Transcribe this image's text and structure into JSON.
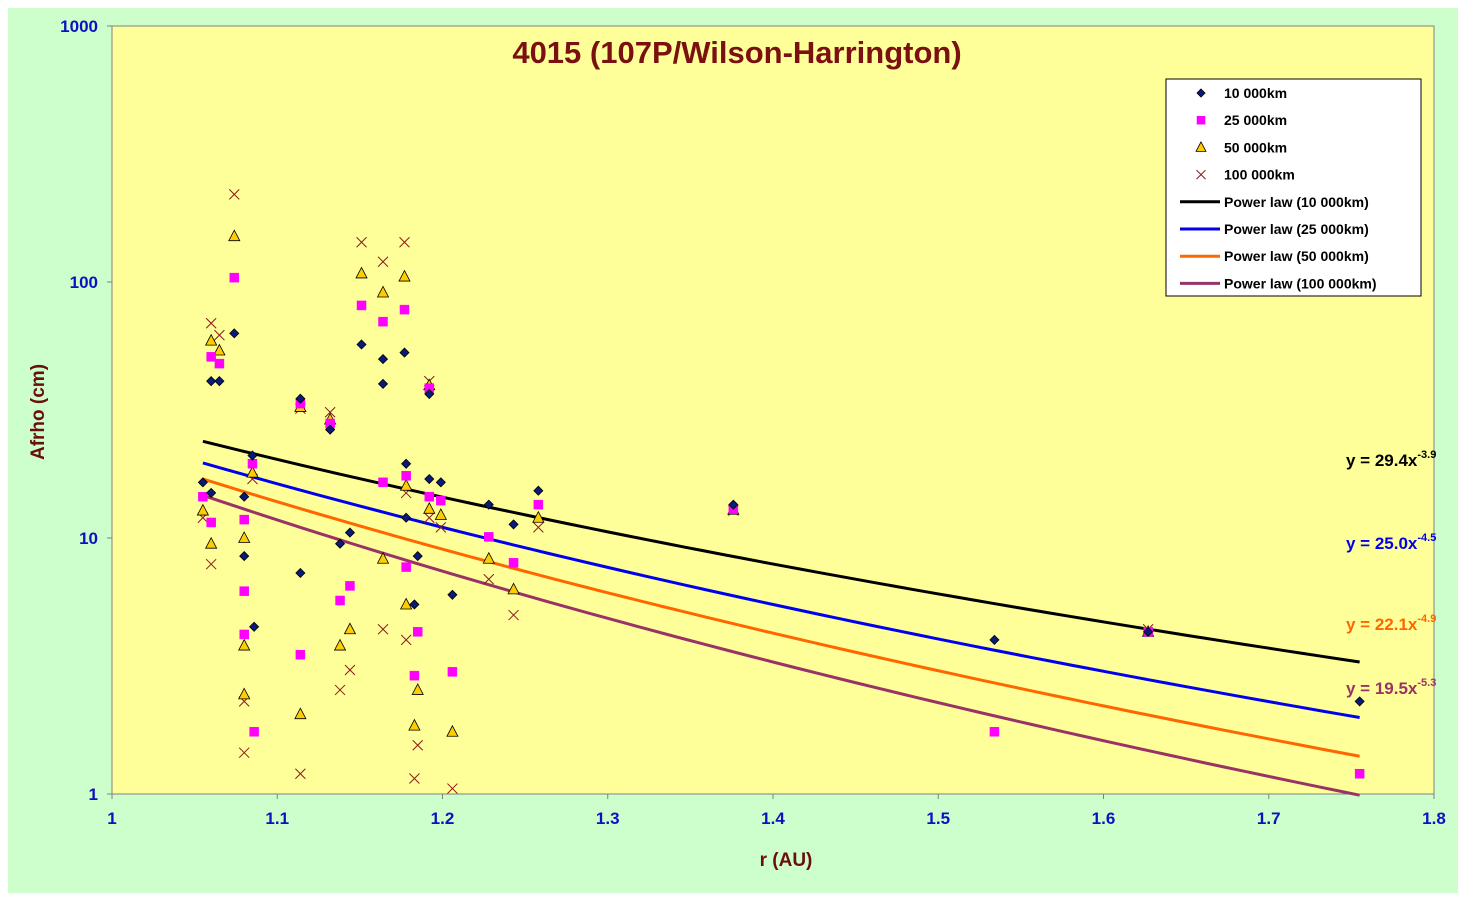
{
  "colors": {
    "outer_background": "#ccffcc",
    "plot_background": "#ffff99",
    "title": "#7a1010",
    "axis_title": "#6a0f0f",
    "tick_labels": "#1010c0"
  },
  "chart_data": {
    "type": "scatter",
    "title": "4015 (107P/Wilson-Harrington)",
    "xlabel": "r (AU)",
    "ylabel": "Afrho (cm)",
    "xlim": [
      1.0,
      1.8
    ],
    "ylim": [
      1,
      1000
    ],
    "yscale": "log",
    "grid": false,
    "legend_position": "top-right",
    "x_ticks": [
      "1",
      "1.1",
      "1.2",
      "1.3",
      "1.4",
      "1.5",
      "1.6",
      "1.7",
      "1.8"
    ],
    "y_ticks": [
      "1",
      "10",
      "100",
      "1000"
    ],
    "series": [
      {
        "name": "10 000km",
        "marker": "diamond",
        "color": "#0a1a7a",
        "stroke": "#000000",
        "points": [
          [
            1.055,
            16.5
          ],
          [
            1.06,
            41
          ],
          [
            1.06,
            15
          ],
          [
            1.065,
            41
          ],
          [
            1.074,
            63
          ],
          [
            1.08,
            14.5
          ],
          [
            1.08,
            8.5
          ],
          [
            1.085,
            21
          ],
          [
            1.086,
            4.5
          ],
          [
            1.114,
            35
          ],
          [
            1.114,
            7.3
          ],
          [
            1.132,
            26.5
          ],
          [
            1.138,
            9.5
          ],
          [
            1.144,
            10.5
          ],
          [
            1.151,
            57
          ],
          [
            1.164,
            50
          ],
          [
            1.164,
            40
          ],
          [
            1.177,
            53
          ],
          [
            1.178,
            19.5
          ],
          [
            1.178,
            12
          ],
          [
            1.183,
            5.5
          ],
          [
            1.185,
            8.5
          ],
          [
            1.192,
            36.5
          ],
          [
            1.192,
            17
          ],
          [
            1.199,
            16.5
          ],
          [
            1.206,
            6.0
          ],
          [
            1.228,
            13.5
          ],
          [
            1.243,
            11.3
          ],
          [
            1.258,
            15.3
          ],
          [
            1.376,
            13.5
          ],
          [
            1.534,
            4.0
          ],
          [
            1.627,
            4.3
          ],
          [
            1.755,
            2.3
          ]
        ]
      },
      {
        "name": "25 000km",
        "marker": "square",
        "color": "#ff00ff",
        "stroke": "#ff00ff",
        "points": [
          [
            1.055,
            14.5
          ],
          [
            1.06,
            51
          ],
          [
            1.06,
            11.5
          ],
          [
            1.065,
            48
          ],
          [
            1.074,
            104
          ],
          [
            1.08,
            11.8
          ],
          [
            1.08,
            6.2
          ],
          [
            1.08,
            4.2
          ],
          [
            1.085,
            19.5
          ],
          [
            1.086,
            1.75
          ],
          [
            1.114,
            33.5
          ],
          [
            1.114,
            3.5
          ],
          [
            1.132,
            28
          ],
          [
            1.138,
            5.7
          ],
          [
            1.144,
            6.5
          ],
          [
            1.151,
            81
          ],
          [
            1.164,
            70
          ],
          [
            1.164,
            16.5
          ],
          [
            1.177,
            78
          ],
          [
            1.178,
            17.5
          ],
          [
            1.178,
            7.7
          ],
          [
            1.183,
            2.9
          ],
          [
            1.185,
            4.3
          ],
          [
            1.192,
            38.5
          ],
          [
            1.192,
            14.5
          ],
          [
            1.199,
            14
          ],
          [
            1.206,
            3.0
          ],
          [
            1.228,
            10.1
          ],
          [
            1.243,
            8.0
          ],
          [
            1.258,
            13.5
          ],
          [
            1.376,
            13.0
          ],
          [
            1.534,
            1.75
          ],
          [
            1.627,
            4.3
          ],
          [
            1.755,
            1.2
          ]
        ]
      },
      {
        "name": "50 000km",
        "marker": "triangle",
        "color": "#ffcc00",
        "stroke": "#000000",
        "points": [
          [
            1.055,
            12.8
          ],
          [
            1.06,
            59
          ],
          [
            1.06,
            9.5
          ],
          [
            1.065,
            54
          ],
          [
            1.074,
            151
          ],
          [
            1.08,
            10
          ],
          [
            1.08,
            3.8
          ],
          [
            1.08,
            2.45
          ],
          [
            1.085,
            18
          ],
          [
            1.114,
            32.5
          ],
          [
            1.114,
            2.05
          ],
          [
            1.132,
            29
          ],
          [
            1.138,
            3.8
          ],
          [
            1.144,
            4.4
          ],
          [
            1.151,
            108
          ],
          [
            1.164,
            91
          ],
          [
            1.164,
            8.3
          ],
          [
            1.177,
            105
          ],
          [
            1.178,
            16
          ],
          [
            1.178,
            5.5
          ],
          [
            1.183,
            1.85
          ],
          [
            1.185,
            2.55
          ],
          [
            1.192,
            39.5
          ],
          [
            1.192,
            13
          ],
          [
            1.199,
            12.3
          ],
          [
            1.206,
            1.75
          ],
          [
            1.228,
            8.3
          ],
          [
            1.243,
            6.3
          ],
          [
            1.258,
            12.0
          ],
          [
            1.376,
            12.9
          ],
          [
            1.627,
            4.3
          ]
        ]
      },
      {
        "name": "100 000km",
        "marker": "x",
        "color": "#8b1a1a",
        "stroke": "#8b1a1a",
        "points": [
          [
            1.055,
            12
          ],
          [
            1.06,
            69
          ],
          [
            1.06,
            7.9
          ],
          [
            1.065,
            62
          ],
          [
            1.074,
            220
          ],
          [
            1.08,
            2.3
          ],
          [
            1.08,
            1.45
          ],
          [
            1.085,
            17
          ],
          [
            1.114,
            32
          ],
          [
            1.114,
            1.2
          ],
          [
            1.132,
            31
          ],
          [
            1.138,
            2.55
          ],
          [
            1.144,
            3.05
          ],
          [
            1.151,
            143
          ],
          [
            1.164,
            120
          ],
          [
            1.164,
            4.4
          ],
          [
            1.177,
            143
          ],
          [
            1.178,
            15
          ],
          [
            1.178,
            4.0
          ],
          [
            1.183,
            1.15
          ],
          [
            1.185,
            1.55
          ],
          [
            1.192,
            41
          ],
          [
            1.192,
            12
          ],
          [
            1.199,
            11
          ],
          [
            1.206,
            1.05
          ],
          [
            1.228,
            6.9
          ],
          [
            1.243,
            5.0
          ],
          [
            1.258,
            11.0
          ],
          [
            1.376,
            12.8
          ],
          [
            1.627,
            4.4
          ]
        ]
      }
    ],
    "fits": [
      {
        "name": "Power law (10 000km)",
        "a": 29.4,
        "b": -3.9,
        "x_range": [
          1.055,
          1.755
        ],
        "color": "#000000",
        "equation_base": "y = 29.4x",
        "equation_exp": "-3.9"
      },
      {
        "name": "Power law (25 000km)",
        "a": 25.0,
        "b": -4.5,
        "x_range": [
          1.055,
          1.755
        ],
        "color": "#0000ee",
        "equation_base": "y = 25.0x",
        "equation_exp": "-4.5"
      },
      {
        "name": "Power law (50 000km)",
        "a": 22.1,
        "b": -4.9,
        "x_range": [
          1.055,
          1.755
        ],
        "color": "#ff6600",
        "equation_base": "y = 22.1x",
        "equation_exp": "-4.9"
      },
      {
        "name": "Power law (100 000km)",
        "a": 19.5,
        "b": -5.3,
        "x_range": [
          1.055,
          1.755
        ],
        "color": "#993366",
        "equation_base": "y = 19.5x",
        "equation_exp": "-5.3"
      }
    ]
  }
}
